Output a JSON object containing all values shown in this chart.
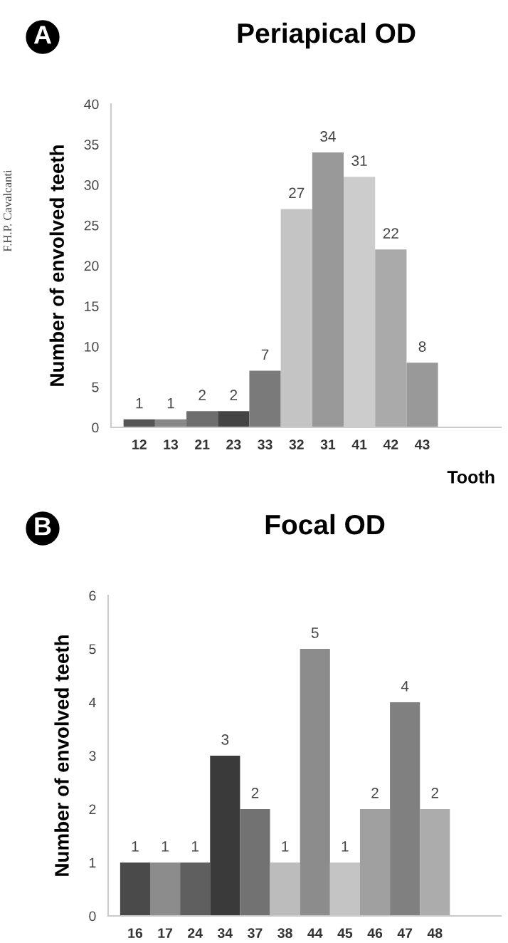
{
  "chart_data": [
    {
      "type": "bar",
      "title": "Periapical OD",
      "xlabel": "Tooth",
      "ylabel": "Number of envolved teeth",
      "annotations": [
        "A",
        "F.H.P. Cavalcanti"
      ],
      "categories": [
        "12",
        "13",
        "21",
        "23",
        "33",
        "32",
        "31",
        "41",
        "42",
        "43"
      ],
      "values": [
        1,
        1,
        2,
        2,
        7,
        27,
        34,
        31,
        22,
        8
      ],
      "colors": [
        "#555555",
        "#888888",
        "#6e6e6e",
        "#444444",
        "#7a7a7a",
        "#c4c4c4",
        "#999999",
        "#cccccc",
        "#aaaaaa",
        "#999999"
      ],
      "ylim": [
        0,
        40
      ],
      "yticks": [
        0,
        5,
        10,
        15,
        20,
        25,
        30,
        35,
        40
      ],
      "data_labels": true,
      "grid": false,
      "legend": false
    },
    {
      "type": "bar",
      "title": "Focal OD",
      "ylabel": "Number of envolved teeth",
      "annotations": [
        "B"
      ],
      "categories": [
        "16",
        "17",
        "24",
        "34",
        "37",
        "38",
        "44",
        "45",
        "46",
        "47",
        "48"
      ],
      "values": [
        1,
        1,
        1,
        3,
        2,
        1,
        5,
        1,
        2,
        4,
        2
      ],
      "colors": [
        "#4a4a4a",
        "#8c8c8c",
        "#5f5f5f",
        "#3a3a3a",
        "#727272",
        "#bcbcbc",
        "#8c8c8c",
        "#c4c4c4",
        "#a0a0a0",
        "#808080",
        "#acacac"
      ],
      "ylim": [
        0,
        6
      ],
      "yticks": [
        0,
        1,
        2,
        3,
        4,
        5,
        6
      ],
      "data_labels": true,
      "grid": false,
      "legend": false
    }
  ]
}
